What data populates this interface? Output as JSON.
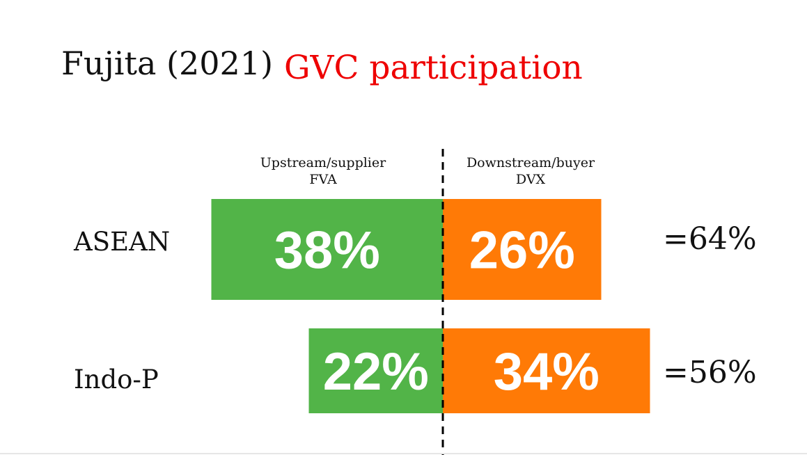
{
  "title": {
    "author": "Fujita (2021)",
    "topic": "GVC participation",
    "topic_color": "#ee0000"
  },
  "chart_data": {
    "type": "bar",
    "orientation": "horizontal-diverging",
    "categories": [
      "ASEAN",
      "Indo-P"
    ],
    "column_headers": {
      "left": [
        "Upstream/supplier",
        "FVA"
      ],
      "right": [
        "Downstream/buyer",
        "DVX"
      ]
    },
    "series": [
      {
        "values": [
          38,
          22
        ],
        "labels": [
          "38%",
          "22%"
        ],
        "color": "#52b448",
        "side": "left"
      },
      {
        "values": [
          26,
          34
        ],
        "labels": [
          "26%",
          "34%"
        ],
        "color": "#ff7a06",
        "side": "right"
      }
    ],
    "totals": [
      "=64%",
      "=56%"
    ],
    "divider": "dashed"
  }
}
